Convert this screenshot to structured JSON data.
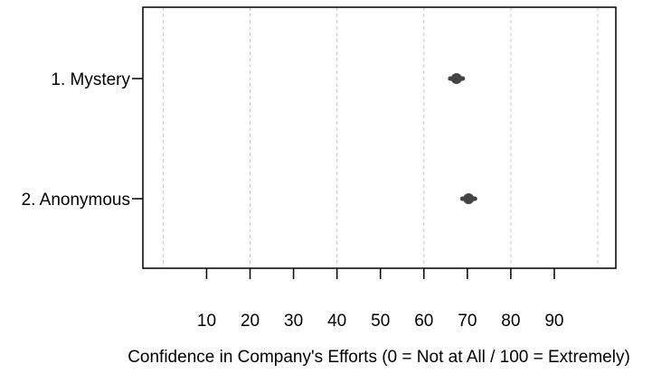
{
  "chart_data": {
    "type": "scatter",
    "categories": [
      "1. Mystery",
      "2. Anonymous"
    ],
    "values": [
      67.5,
      70.3
    ],
    "xlabel": "Confidence in Company's Efforts (0 = Not at All / 100 = Extremely)",
    "ylabel": "",
    "xlim": [
      -0.5,
      100
    ],
    "x_ticks": [
      10,
      20,
      30,
      40,
      50,
      60,
      70,
      80,
      90
    ],
    "x_tick_labels": [
      "10",
      "20",
      "30",
      "40",
      "50",
      "60",
      "70",
      "80",
      "90"
    ],
    "gridlines_x": [
      0,
      20,
      40,
      60,
      80,
      100
    ],
    "grid": true,
    "marker_color": "#444444"
  }
}
